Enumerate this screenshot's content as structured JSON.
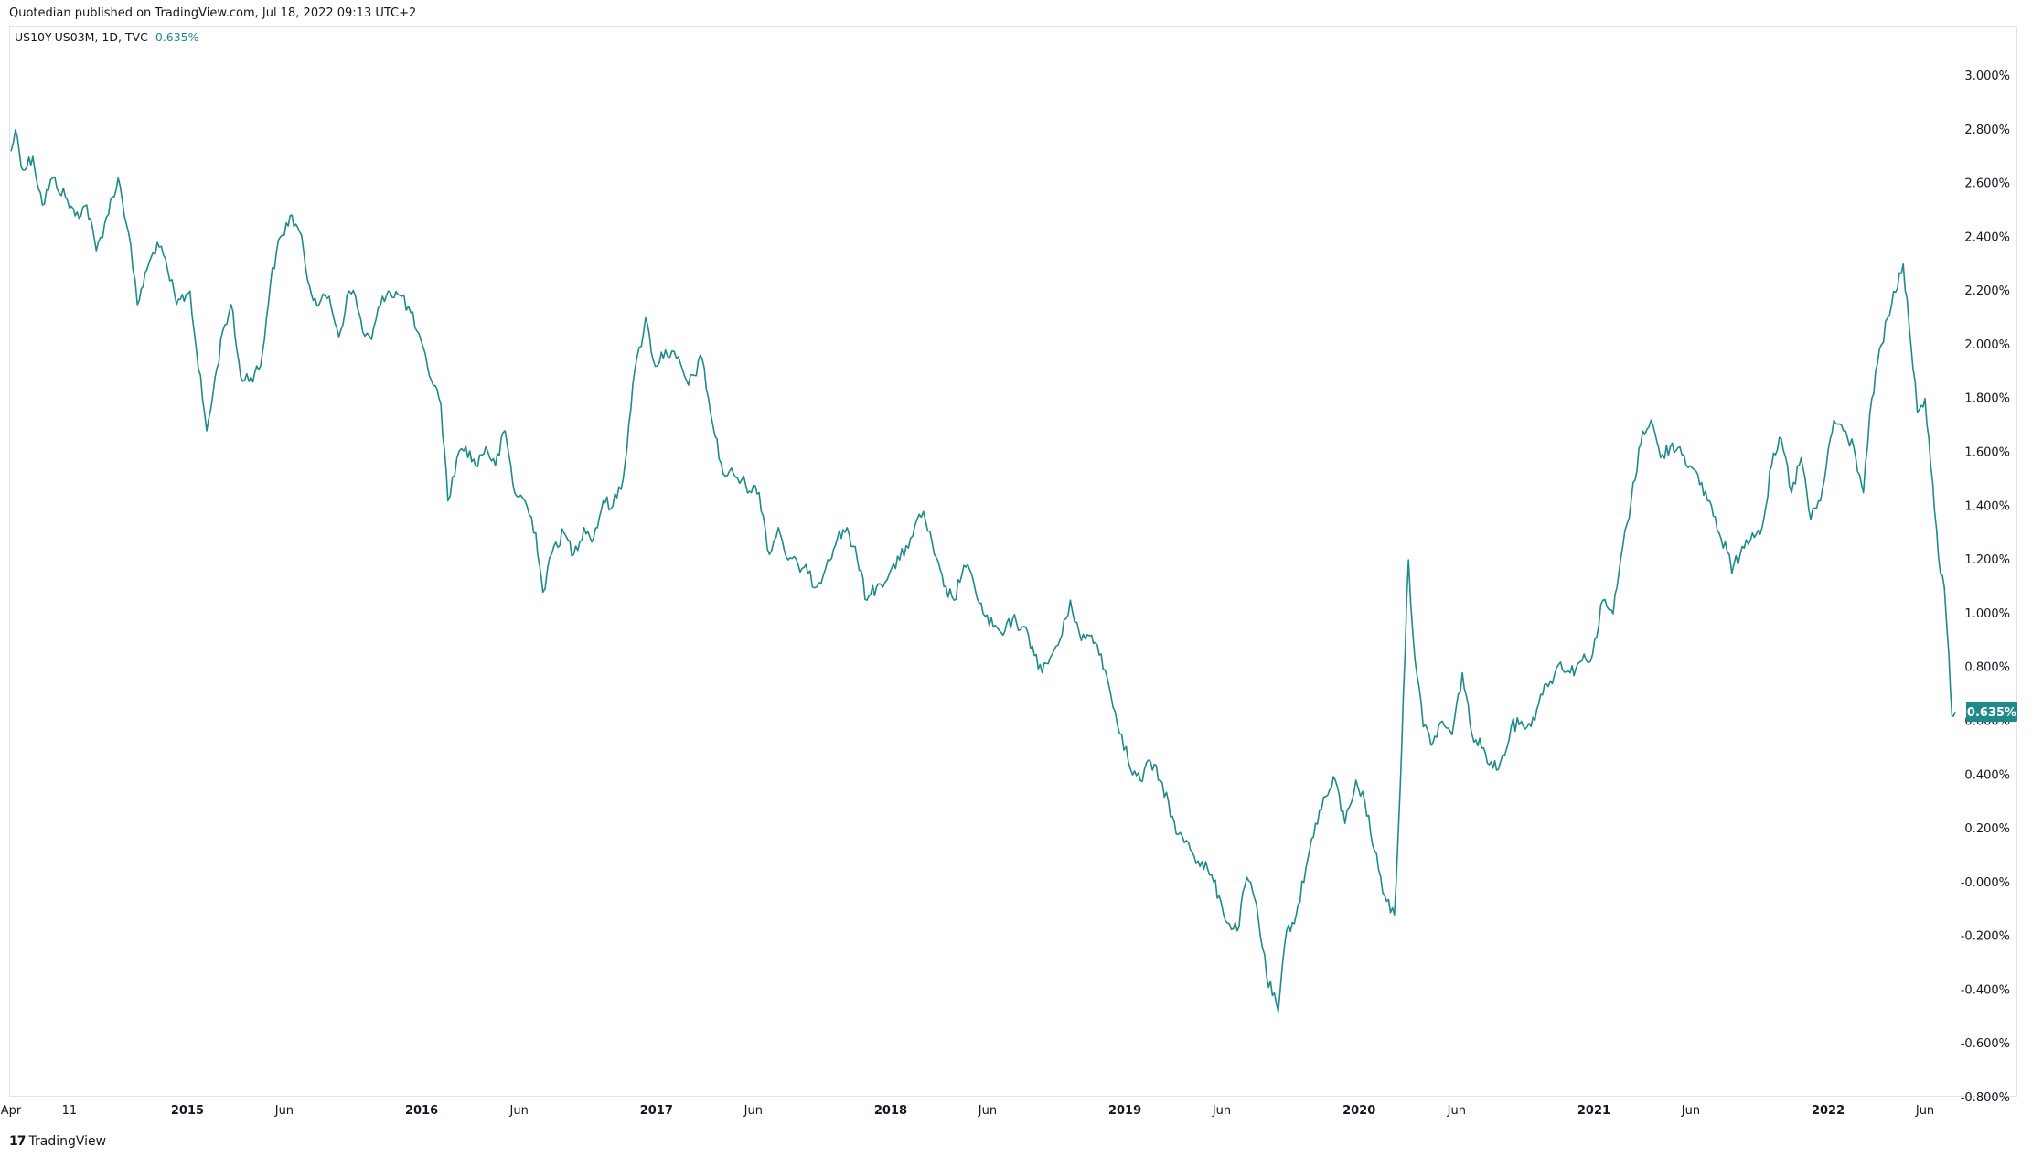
{
  "header": {
    "published": "Quotedian published on TradingView.com, Jul 18, 2022 09:13 UTC+2"
  },
  "legend": {
    "symbol": "US10Y-US03M, 1D, TVC",
    "value": "0.635%"
  },
  "footer": {
    "brand": "TradingView"
  },
  "colors": {
    "line": "#1e8a8c",
    "text": "#131722",
    "border": "#e0e3eb"
  },
  "chart_data": {
    "type": "line",
    "title": "",
    "xlabel": "",
    "ylabel": "",
    "ylim": [
      -0.8,
      3.0
    ],
    "y_ticks": [
      "3.000%",
      "2.800%",
      "2.600%",
      "2.400%",
      "2.200%",
      "2.000%",
      "1.800%",
      "1.600%",
      "1.400%",
      "1.200%",
      "1.000%",
      "0.800%",
      "0.600%",
      "0.400%",
      "0.200%",
      "-0.000%",
      "-0.200%",
      "-0.400%",
      "-0.600%",
      "-0.800%"
    ],
    "y_tick_values": [
      3.0,
      2.8,
      2.6,
      2.4,
      2.2,
      2.0,
      1.8,
      1.6,
      1.4,
      1.2,
      1.0,
      0.8,
      0.6,
      0.4,
      0.2,
      0.0,
      -0.2,
      -0.4,
      -0.6,
      -0.8
    ],
    "x_range": [
      "2014-04-01",
      "2022-07-18"
    ],
    "x_ticks": [
      {
        "label": "Apr",
        "date": "2014-04-01",
        "bold": false
      },
      {
        "label": "11",
        "date": "2014-07-01",
        "bold": false
      },
      {
        "label": "2015",
        "date": "2015-01-01",
        "bold": true
      },
      {
        "label": "Jun",
        "date": "2015-06-01",
        "bold": false
      },
      {
        "label": "2016",
        "date": "2016-01-01",
        "bold": true
      },
      {
        "label": "Jun",
        "date": "2016-06-01",
        "bold": false
      },
      {
        "label": "2017",
        "date": "2017-01-01",
        "bold": true
      },
      {
        "label": "Jun",
        "date": "2017-06-01",
        "bold": false
      },
      {
        "label": "2018",
        "date": "2018-01-01",
        "bold": true
      },
      {
        "label": "Jun",
        "date": "2018-06-01",
        "bold": false
      },
      {
        "label": "2019",
        "date": "2019-01-01",
        "bold": true
      },
      {
        "label": "Jun",
        "date": "2019-06-01",
        "bold": false
      },
      {
        "label": "2020",
        "date": "2020-01-01",
        "bold": true
      },
      {
        "label": "Jun",
        "date": "2020-06-01",
        "bold": false
      },
      {
        "label": "2021",
        "date": "2021-01-01",
        "bold": true
      },
      {
        "label": "Jun",
        "date": "2021-06-01",
        "bold": false
      },
      {
        "label": "2022",
        "date": "2022-01-01",
        "bold": true
      },
      {
        "label": "Jun",
        "date": "2022-06-01",
        "bold": false
      }
    ],
    "last_value_label": "0.635%",
    "grid": false,
    "series": [
      {
        "color": "#1e8a8c",
        "points": [
          [
            "2014-04-01",
            2.72
          ],
          [
            "2014-04-08",
            2.8
          ],
          [
            "2014-04-20",
            2.65
          ],
          [
            "2014-05-05",
            2.7
          ],
          [
            "2014-05-20",
            2.52
          ],
          [
            "2014-06-05",
            2.62
          ],
          [
            "2014-06-25",
            2.55
          ],
          [
            "2014-07-10",
            2.48
          ],
          [
            "2014-07-28",
            2.52
          ],
          [
            "2014-08-12",
            2.35
          ],
          [
            "2014-08-25",
            2.45
          ],
          [
            "2014-09-15",
            2.62
          ],
          [
            "2014-10-01",
            2.42
          ],
          [
            "2014-10-15",
            2.15
          ],
          [
            "2014-10-30",
            2.28
          ],
          [
            "2014-11-15",
            2.38
          ],
          [
            "2014-12-01",
            2.28
          ],
          [
            "2014-12-15",
            2.15
          ],
          [
            "2015-01-05",
            2.2
          ],
          [
            "2015-01-15",
            1.98
          ],
          [
            "2015-01-31",
            1.68
          ],
          [
            "2015-02-10",
            1.82
          ],
          [
            "2015-02-25",
            2.05
          ],
          [
            "2015-03-10",
            2.15
          ],
          [
            "2015-03-25",
            1.88
          ],
          [
            "2015-04-10",
            1.88
          ],
          [
            "2015-04-25",
            1.92
          ],
          [
            "2015-05-10",
            2.22
          ],
          [
            "2015-05-20",
            2.35
          ],
          [
            "2015-06-10",
            2.48
          ],
          [
            "2015-06-25",
            2.42
          ],
          [
            "2015-07-10",
            2.22
          ],
          [
            "2015-07-25",
            2.15
          ],
          [
            "2015-08-10",
            2.18
          ],
          [
            "2015-08-25",
            2.03
          ],
          [
            "2015-09-10",
            2.2
          ],
          [
            "2015-09-20",
            2.18
          ],
          [
            "2015-10-01",
            2.05
          ],
          [
            "2015-10-15",
            2.02
          ],
          [
            "2015-11-01",
            2.18
          ],
          [
            "2015-11-10",
            2.2
          ],
          [
            "2015-12-01",
            2.18
          ],
          [
            "2015-12-15",
            2.12
          ],
          [
            "2016-01-10",
            1.92
          ],
          [
            "2016-01-31",
            1.78
          ],
          [
            "2016-02-11",
            1.42
          ],
          [
            "2016-02-25",
            1.58
          ],
          [
            "2016-03-10",
            1.62
          ],
          [
            "2016-03-25",
            1.55
          ],
          [
            "2016-04-10",
            1.62
          ],
          [
            "2016-04-25",
            1.55
          ],
          [
            "2016-05-10",
            1.68
          ],
          [
            "2016-05-25",
            1.45
          ],
          [
            "2016-06-10",
            1.42
          ],
          [
            "2016-06-27",
            1.3
          ],
          [
            "2016-07-08",
            1.08
          ],
          [
            "2016-07-25",
            1.25
          ],
          [
            "2016-08-10",
            1.3
          ],
          [
            "2016-08-25",
            1.22
          ],
          [
            "2016-09-10",
            1.32
          ],
          [
            "2016-09-25",
            1.28
          ],
          [
            "2016-10-10",
            1.42
          ],
          [
            "2016-10-25",
            1.4
          ],
          [
            "2016-11-10",
            1.5
          ],
          [
            "2016-11-25",
            1.85
          ],
          [
            "2016-12-15",
            2.1
          ],
          [
            "2016-12-30",
            1.92
          ],
          [
            "2017-01-15",
            1.98
          ],
          [
            "2017-02-01",
            1.95
          ],
          [
            "2017-02-20",
            1.85
          ],
          [
            "2017-03-13",
            1.95
          ],
          [
            "2017-03-30",
            1.7
          ],
          [
            "2017-04-15",
            1.52
          ],
          [
            "2017-05-01",
            1.52
          ],
          [
            "2017-05-20",
            1.48
          ],
          [
            "2017-06-10",
            1.45
          ],
          [
            "2017-06-26",
            1.22
          ],
          [
            "2017-07-10",
            1.32
          ],
          [
            "2017-07-25",
            1.2
          ],
          [
            "2017-08-10",
            1.18
          ],
          [
            "2017-08-25",
            1.15
          ],
          [
            "2017-09-08",
            1.1
          ],
          [
            "2017-09-25",
            1.2
          ],
          [
            "2017-10-10",
            1.28
          ],
          [
            "2017-10-25",
            1.32
          ],
          [
            "2017-11-10",
            1.2
          ],
          [
            "2017-11-25",
            1.05
          ],
          [
            "2017-12-10",
            1.1
          ],
          [
            "2017-12-30",
            1.15
          ],
          [
            "2018-01-15",
            1.2
          ],
          [
            "2018-02-01",
            1.28
          ],
          [
            "2018-02-21",
            1.38
          ],
          [
            "2018-03-10",
            1.22
          ],
          [
            "2018-03-25",
            1.1
          ],
          [
            "2018-04-10",
            1.05
          ],
          [
            "2018-04-25",
            1.18
          ],
          [
            "2018-05-10",
            1.12
          ],
          [
            "2018-05-25",
            1.0
          ],
          [
            "2018-06-10",
            0.95
          ],
          [
            "2018-06-25",
            0.92
          ],
          [
            "2018-07-10",
            0.98
          ],
          [
            "2018-07-25",
            0.95
          ],
          [
            "2018-08-10",
            0.88
          ],
          [
            "2018-08-25",
            0.78
          ],
          [
            "2018-09-10",
            0.85
          ],
          [
            "2018-09-25",
            0.92
          ],
          [
            "2018-10-08",
            1.05
          ],
          [
            "2018-10-25",
            0.9
          ],
          [
            "2018-11-10",
            0.92
          ],
          [
            "2018-11-25",
            0.85
          ],
          [
            "2018-12-10",
            0.7
          ],
          [
            "2018-12-27",
            0.55
          ],
          [
            "2019-01-10",
            0.42
          ],
          [
            "2019-01-25",
            0.38
          ],
          [
            "2019-02-10",
            0.45
          ],
          [
            "2019-02-25",
            0.38
          ],
          [
            "2019-03-10",
            0.3
          ],
          [
            "2019-03-22",
            0.18
          ],
          [
            "2019-04-10",
            0.15
          ],
          [
            "2019-04-25",
            0.08
          ],
          [
            "2019-05-10",
            0.05
          ],
          [
            "2019-05-28",
            -0.05
          ],
          [
            "2019-06-10",
            -0.15
          ],
          [
            "2019-06-25",
            -0.18
          ],
          [
            "2019-07-10",
            0.02
          ],
          [
            "2019-07-25",
            -0.08
          ],
          [
            "2019-08-10",
            -0.35
          ],
          [
            "2019-08-28",
            -0.48
          ],
          [
            "2019-09-10",
            -0.18
          ],
          [
            "2019-09-25",
            -0.12
          ],
          [
            "2019-10-10",
            0.05
          ],
          [
            "2019-10-25",
            0.22
          ],
          [
            "2019-11-10",
            0.32
          ],
          [
            "2019-11-25",
            0.38
          ],
          [
            "2019-12-10",
            0.22
          ],
          [
            "2019-12-27",
            0.38
          ],
          [
            "2020-01-10",
            0.3
          ],
          [
            "2020-01-25",
            0.12
          ],
          [
            "2020-02-10",
            -0.05
          ],
          [
            "2020-02-25",
            -0.12
          ],
          [
            "2020-03-05",
            0.35
          ],
          [
            "2020-03-10",
            0.7
          ],
          [
            "2020-03-18",
            1.2
          ],
          [
            "2020-03-25",
            0.92
          ],
          [
            "2020-04-10",
            0.58
          ],
          [
            "2020-04-25",
            0.52
          ],
          [
            "2020-05-10",
            0.6
          ],
          [
            "2020-05-25",
            0.55
          ],
          [
            "2020-06-10",
            0.78
          ],
          [
            "2020-06-25",
            0.55
          ],
          [
            "2020-07-10",
            0.5
          ],
          [
            "2020-07-25",
            0.45
          ],
          [
            "2020-08-05",
            0.42
          ],
          [
            "2020-08-25",
            0.58
          ],
          [
            "2020-09-10",
            0.6
          ],
          [
            "2020-09-25",
            0.58
          ],
          [
            "2020-10-10",
            0.7
          ],
          [
            "2020-10-25",
            0.75
          ],
          [
            "2020-11-10",
            0.82
          ],
          [
            "2020-11-25",
            0.78
          ],
          [
            "2020-12-10",
            0.82
          ],
          [
            "2020-12-30",
            0.85
          ],
          [
            "2021-01-15",
            1.05
          ],
          [
            "2021-01-31",
            1.0
          ],
          [
            "2021-02-15",
            1.25
          ],
          [
            "2021-02-28",
            1.42
          ],
          [
            "2021-03-18",
            1.68
          ],
          [
            "2021-03-31",
            1.72
          ],
          [
            "2021-04-15",
            1.58
          ],
          [
            "2021-04-30",
            1.62
          ],
          [
            "2021-05-15",
            1.62
          ],
          [
            "2021-05-31",
            1.55
          ],
          [
            "2021-06-15",
            1.48
          ],
          [
            "2021-06-30",
            1.42
          ],
          [
            "2021-07-15",
            1.3
          ],
          [
            "2021-07-31",
            1.22
          ],
          [
            "2021-08-04",
            1.15
          ],
          [
            "2021-08-20",
            1.25
          ],
          [
            "2021-09-05",
            1.3
          ],
          [
            "2021-09-20",
            1.32
          ],
          [
            "2021-10-05",
            1.55
          ],
          [
            "2021-10-20",
            1.65
          ],
          [
            "2021-11-05",
            1.45
          ],
          [
            "2021-11-20",
            1.58
          ],
          [
            "2021-12-05",
            1.35
          ],
          [
            "2021-12-20",
            1.42
          ],
          [
            "2022-01-10",
            1.72
          ],
          [
            "2022-01-25",
            1.68
          ],
          [
            "2022-02-10",
            1.62
          ],
          [
            "2022-02-25",
            1.45
          ],
          [
            "2022-03-10",
            1.8
          ],
          [
            "2022-03-25",
            2.0
          ],
          [
            "2022-04-10",
            2.15
          ],
          [
            "2022-04-28",
            2.3
          ],
          [
            "2022-05-10",
            2.0
          ],
          [
            "2022-05-20",
            1.75
          ],
          [
            "2022-06-01",
            1.8
          ],
          [
            "2022-06-10",
            1.55
          ],
          [
            "2022-06-16",
            1.38
          ],
          [
            "2022-06-25",
            1.15
          ],
          [
            "2022-07-01",
            1.1
          ],
          [
            "2022-07-08",
            0.85
          ],
          [
            "2022-07-13",
            0.62
          ],
          [
            "2022-07-18",
            0.635
          ]
        ]
      }
    ]
  }
}
